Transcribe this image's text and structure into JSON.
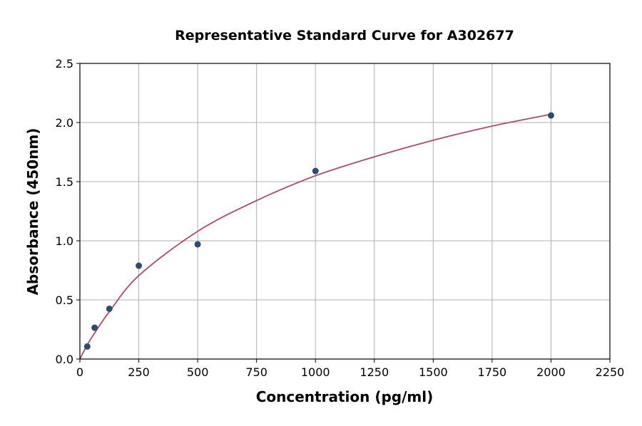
{
  "chart_data": {
    "type": "scatter",
    "title": "Representative Standard Curve for A302677",
    "xlabel": "Concentration (pg/ml)",
    "ylabel": "Absorbance (450nm)",
    "xlim": [
      0,
      2250
    ],
    "ylim": [
      0,
      2.5
    ],
    "xticks": [
      0,
      250,
      500,
      750,
      1000,
      1250,
      1500,
      1750,
      2000,
      2250
    ],
    "yticks": [
      0.0,
      0.5,
      1.0,
      1.5,
      2.0,
      2.5
    ],
    "ytick_labels": [
      "0.0",
      "0.5",
      "1.0",
      "1.5",
      "2.0",
      "2.5"
    ],
    "grid": true,
    "points": {
      "x": [
        31.25,
        62.5,
        125,
        250,
        500,
        1000,
        2000
      ],
      "y": [
        0.106,
        0.265,
        0.425,
        0.789,
        0.97,
        1.59,
        2.06
      ],
      "color": "#2e4a6e"
    },
    "fit_curve": {
      "x": [
        0,
        31.25,
        62.5,
        125,
        250,
        500,
        750,
        1000,
        1250,
        1500,
        1750,
        2000
      ],
      "y": [
        0,
        0.12,
        0.22,
        0.4,
        0.705,
        1.08,
        1.34,
        1.55,
        1.71,
        1.85,
        1.97,
        2.07
      ],
      "color": "#b5486e"
    }
  }
}
